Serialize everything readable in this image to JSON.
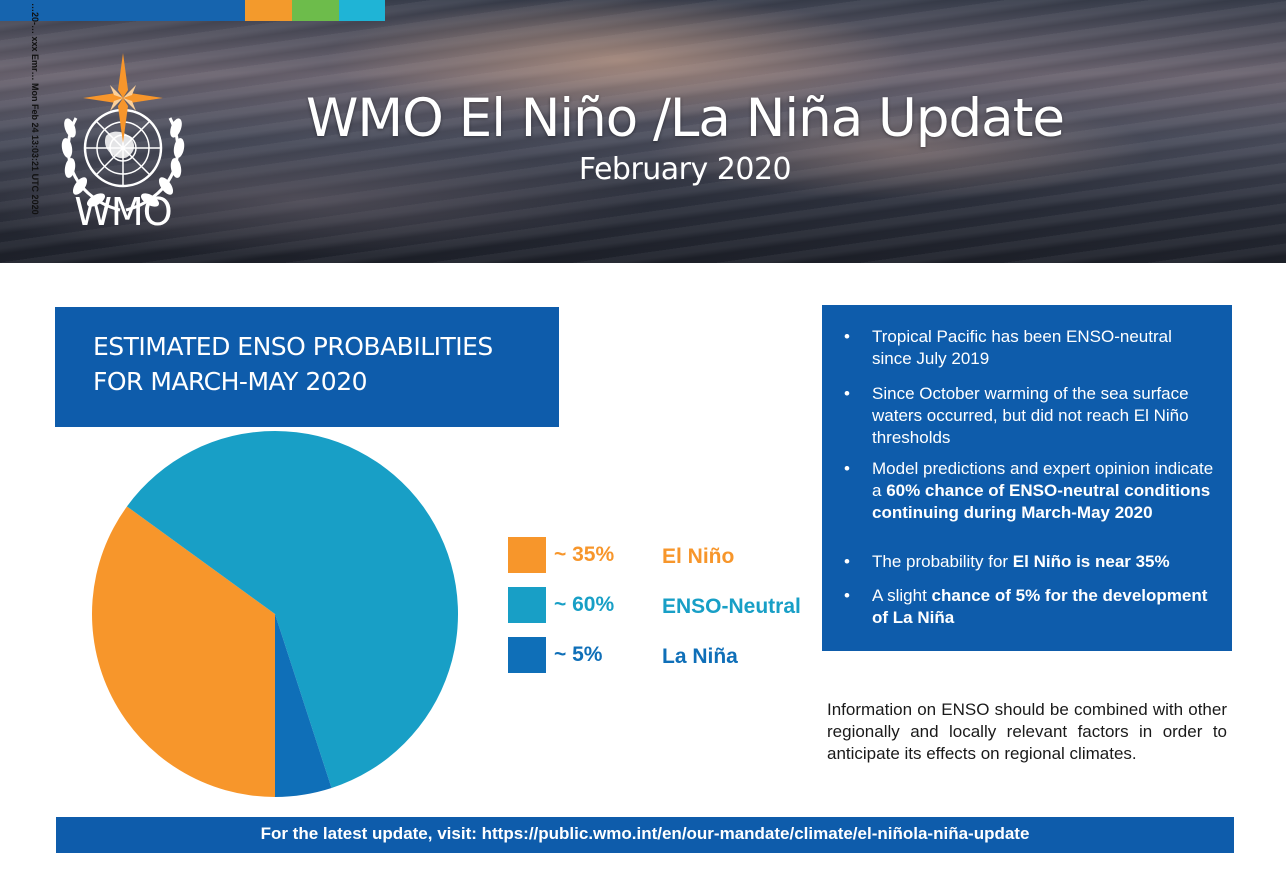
{
  "header": {
    "title": "WMO El Niño /La Niña Update",
    "subtitle": "February 2020",
    "logo_text": "WMO",
    "side_text": "…20-… xxx Emr… Mon Feb 24 13:03:21 UTC 2020",
    "stripe_colors": [
      "#1664ae",
      "#f39a2c",
      "#6dbc4b",
      "#1fb4d6"
    ]
  },
  "enso_title": {
    "line1": "ESTIMATED ENSO PROBABILITIES",
    "line2": "FOR MARCH-MAY 2020"
  },
  "chart_data": {
    "type": "pie",
    "title": "ESTIMATED ENSO PROBABILITIES FOR MARCH-MAY 2020",
    "categories": [
      "El Niño",
      "ENSO-Neutral",
      "La Niña"
    ],
    "values": [
      35,
      60,
      5
    ],
    "value_labels": [
      "~ 35%",
      "~ 60%",
      "~ 5%"
    ],
    "colors": [
      "#f7962b",
      "#189fc6",
      "#0f6fb8"
    ],
    "label_colors": [
      "#f7962b",
      "#189fc6",
      "#0f6fb8"
    ],
    "legend_placement": "right"
  },
  "info": {
    "items": [
      [
        {
          "t": "Tropical Pacific has been ENSO-neutral since July 2019",
          "b": false
        }
      ],
      [
        {
          "t": "Since October warming of the sea surface waters occurred, but did not reach El Niño thresholds",
          "b": false
        }
      ],
      [
        {
          "t": "Model predictions and expert opinion indicate a ",
          "b": false
        },
        {
          "t": "60% chance of ENSO-neutral conditions continuing during March-May 2020",
          "b": true
        }
      ],
      [
        {
          "t": "The probability for ",
          "b": false
        },
        {
          "t": "El Niño is near 35%",
          "b": true
        }
      ],
      [
        {
          "t": "A slight ",
          "b": false
        },
        {
          "t": "chance of 5% for the development of La Niña",
          "b": true
        }
      ]
    ]
  },
  "note": "Information on ENSO should be combined with other regionally and locally relevant factors in order to anticipate its effects on regional climates.",
  "footer": "For the latest update, visit: https://public.wmo.int/en/our-mandate/climate/el-niñola-niña-update"
}
